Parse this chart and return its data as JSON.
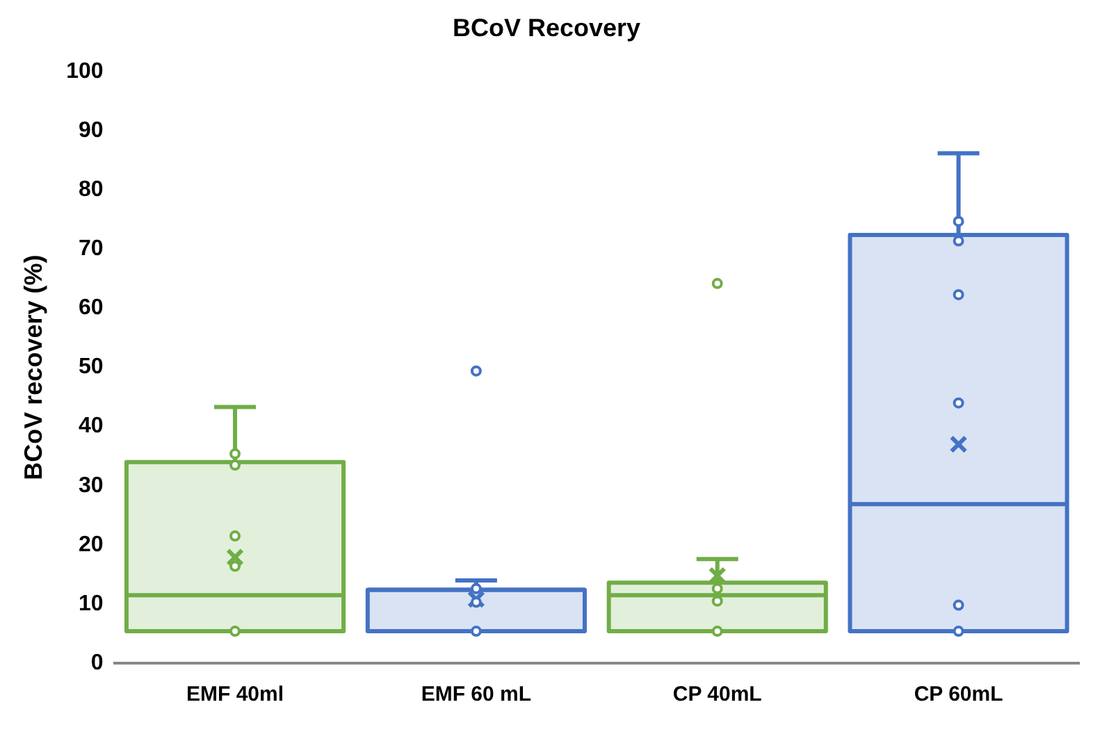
{
  "chart_data": {
    "type": "box",
    "title": "BCoV Recovery",
    "ylabel": "BCoV recovery (%)",
    "categories": [
      "EMF 40ml",
      "EMF 60 mL",
      "CP 40mL",
      "CP 60mL"
    ],
    "colors": [
      "#70ad47",
      "#4472c4",
      "#70ad47",
      "#4472c4"
    ],
    "boxes": [
      {
        "low": 5.4,
        "q1": 5.4,
        "median": 11.5,
        "q3": 34,
        "high": 43.3,
        "mean": 17.9
      },
      {
        "low": 5.4,
        "q1": 5.4,
        "median": 12.4,
        "q3": 12.4,
        "high": 14,
        "mean": 10.8,
        "outliers": [
          49.4
        ]
      },
      {
        "low": 5.4,
        "q1": 5.4,
        "median": 11.5,
        "q3": 13.6,
        "high": 17.6,
        "mean": 14.8,
        "outliers": [
          64.2
        ]
      },
      {
        "low": 5.4,
        "q1": 5.4,
        "median": 26.9,
        "q3": 72.4,
        "high": 86.2,
        "mean": 37
      }
    ],
    "series": [
      {
        "type": "scatter",
        "color": "#70ad47",
        "x": [
          "EMF 40ml",
          "EMF 40ml",
          "EMF 40ml",
          "EMF 40ml",
          "EMF 40ml",
          "CP 40mL",
          "CP 40mL",
          "CP 40mL"
        ],
        "values": [
          35.4,
          33.5,
          21.5,
          16.4,
          5.4,
          12.6,
          10.5,
          5.4
        ]
      },
      {
        "type": "scatter",
        "color": "#4472c4",
        "x": [
          "EMF 60 mL",
          "EMF 60 mL",
          "EMF 60 mL",
          "CP 60mL",
          "CP 60mL",
          "CP 60mL",
          "CP 60mL",
          "CP 60mL",
          "CP 60mL"
        ],
        "values": [
          12.6,
          10.3,
          5.4,
          74.7,
          71.4,
          62.3,
          44,
          9.8,
          5.4
        ]
      }
    ],
    "ylim": [
      0,
      100
    ],
    "yticks": [
      0,
      10,
      20,
      30,
      40,
      50,
      60,
      70,
      80,
      90,
      100
    ],
    "grid": false,
    "legend": false,
    "marker": "circle"
  }
}
